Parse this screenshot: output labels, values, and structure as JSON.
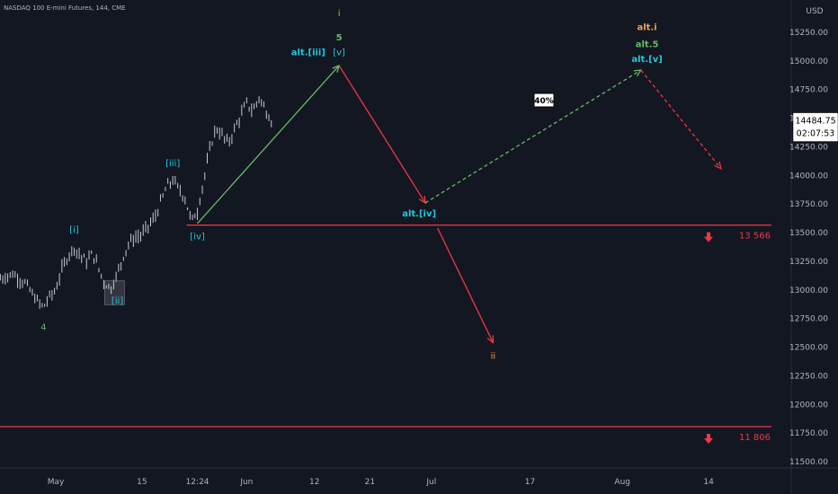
{
  "chart_title": "NASDAQ 100 E-mini Futures, 144, CME",
  "currency": "USD",
  "last_price": "14484.75",
  "countdown": "02:07:53",
  "percent_badge": "40%",
  "colors": {
    "background": "#131722",
    "candle": "#c8cacf",
    "green": "#66bb6a",
    "red": "#f23645",
    "cyan": "#26c6da",
    "orange": "#f0a050",
    "axis_text": "#b2b5be"
  },
  "chart_data": {
    "type": "line",
    "title": "NASDAQ 100 E-mini Futures, 144, CME",
    "xlabel": "",
    "ylabel": "USD",
    "ylim": [
      11400,
      15450
    ],
    "x_ticks": [
      {
        "day": 0,
        "label": "May"
      },
      {
        "day": 14,
        "label": "15"
      },
      {
        "day": 23,
        "label": "12:24"
      },
      {
        "day": 31,
        "label": "Jun"
      },
      {
        "day": 42,
        "label": "12"
      },
      {
        "day": 51,
        "label": "21"
      },
      {
        "day": 61,
        "label": "Jul"
      },
      {
        "day": 77,
        "label": "17"
      },
      {
        "day": 92,
        "label": "Aug"
      },
      {
        "day": 106,
        "label": "14"
      }
    ],
    "y_ticks": [
      11500,
      11750,
      12000,
      12250,
      12500,
      12750,
      13000,
      13250,
      13500,
      13750,
      14000,
      14250,
      14500,
      14750,
      15000,
      15250
    ],
    "price_path": [
      [
        -9,
        13100
      ],
      [
        -7,
        13140
      ],
      [
        -5,
        13060
      ],
      [
        -3,
        12900
      ],
      [
        -2,
        12850
      ],
      [
        -1,
        12940
      ],
      [
        0,
        13000
      ],
      [
        1,
        13180
      ],
      [
        2,
        13300
      ],
      [
        3,
        13370
      ],
      [
        4,
        13300
      ],
      [
        5,
        13250
      ],
      [
        6,
        13320
      ],
      [
        7,
        13180
      ],
      [
        8,
        13050
      ],
      [
        9,
        13020
      ],
      [
        10,
        13140
      ],
      [
        11,
        13300
      ],
      [
        12,
        13420
      ],
      [
        13,
        13460
      ],
      [
        14,
        13480
      ],
      [
        15,
        13560
      ],
      [
        16,
        13620
      ],
      [
        17,
        13760
      ],
      [
        18,
        13900
      ],
      [
        19,
        13960
      ],
      [
        20,
        13880
      ],
      [
        21,
        13800
      ],
      [
        22,
        13600
      ],
      [
        23,
        13690
      ],
      [
        24,
        13950
      ],
      [
        25,
        14220
      ],
      [
        26,
        14420
      ],
      [
        27,
        14350
      ],
      [
        28,
        14280
      ],
      [
        29,
        14400
      ],
      [
        30,
        14520
      ],
      [
        31,
        14630
      ],
      [
        32,
        14560
      ],
      [
        33,
        14680
      ],
      [
        34,
        14580
      ],
      [
        35,
        14480
      ]
    ],
    "support_levels": [
      {
        "value": 13566,
        "label": "13 566"
      },
      {
        "value": 11806,
        "label": "11 806"
      }
    ],
    "scenario_lines": [
      {
        "name": "",
        "style": "solid",
        "color": "green",
        "points": [
          [
            23,
            13580
          ],
          [
            46,
            14960
          ]
        ]
      },
      {
        "name": "",
        "style": "solid",
        "color": "red",
        "points": [
          [
            46,
            14960
          ],
          [
            60,
            13760
          ]
        ]
      },
      {
        "name": "",
        "style": "dashed",
        "color": "green",
        "points": [
          [
            60,
            13760
          ],
          [
            95,
            14920
          ]
        ]
      },
      {
        "name": "",
        "style": "dashed",
        "color": "red",
        "points": [
          [
            95,
            14920
          ],
          [
            108,
            14060
          ]
        ]
      },
      {
        "name": "",
        "style": "solid",
        "color": "red",
        "points": [
          [
            62,
            13540
          ],
          [
            71,
            12540
          ]
        ]
      }
    ],
    "annotations": [
      {
        "text": "4",
        "day": -2,
        "price": 12650,
        "color": "green"
      },
      {
        "text": "[i]",
        "day": 3,
        "price": 13500,
        "color": "cyan"
      },
      {
        "text": "[ii]",
        "day": 10,
        "price": 12880,
        "color": "cyan"
      },
      {
        "text": "[iii]",
        "day": 19,
        "price": 14080,
        "color": "cyan"
      },
      {
        "text": "[iv]",
        "day": 23,
        "price": 13440,
        "color": "cyan"
      },
      {
        "text": "i",
        "day": 46,
        "price": 15390,
        "color": "orange"
      },
      {
        "text": "5",
        "day": 46,
        "price": 15180,
        "color": "green"
      },
      {
        "text": "alt.[iii]",
        "day": 41,
        "price": 15050,
        "color": "cyan"
      },
      {
        "text": "[v]",
        "day": 46,
        "price": 15050,
        "color": "cyan"
      },
      {
        "text": "alt.[iv]",
        "day": 59,
        "price": 13640,
        "color": "cyan"
      },
      {
        "text": "ii",
        "day": 71,
        "price": 12400,
        "color": "orange"
      },
      {
        "text": "alt.i",
        "day": 96,
        "price": 15270,
        "color": "orange"
      },
      {
        "text": "alt.5",
        "day": 96,
        "price": 15120,
        "color": "green"
      },
      {
        "text": "alt.[v]",
        "day": 96,
        "price": 14990,
        "color": "cyan"
      }
    ]
  }
}
